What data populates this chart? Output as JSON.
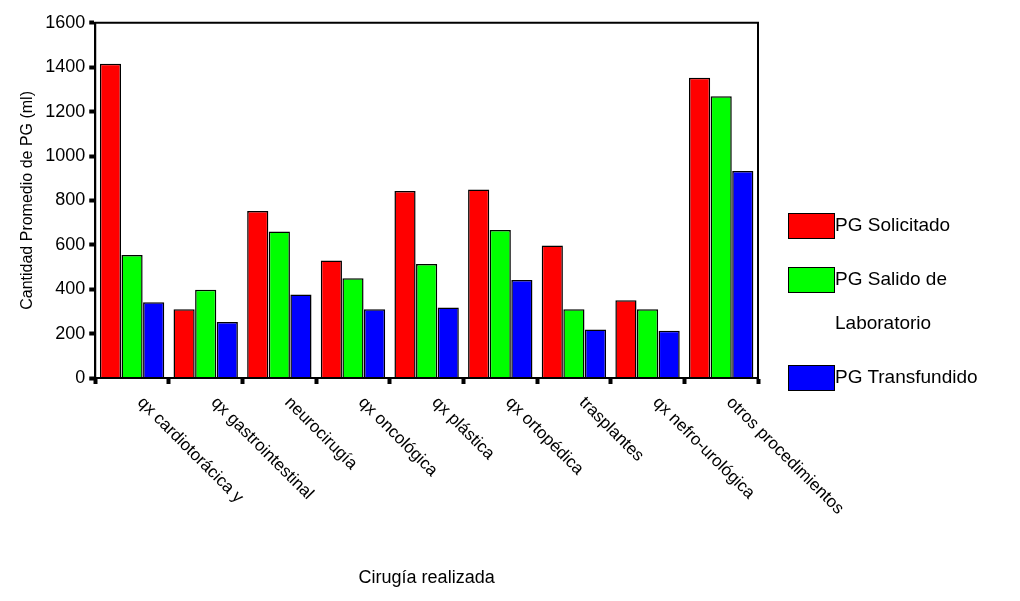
{
  "chart_data": {
    "type": "bar",
    "xlabel": "Cirugía realizada",
    "ylabel": "Cantidad Promedio de PG (ml)",
    "categories": [
      "qx cardiotorácica y",
      "qx gastrointestinal",
      "neurocirugía",
      "qx oncológica",
      "qx plástica",
      "qx ortopédica",
      "trasplantes",
      "qx nefro-urológica",
      "otros procedimientos"
    ],
    "series": [
      {
        "name": "PG Solicitado",
        "color": "#ff0000",
        "values": [
          1415,
          310,
          752,
          529,
          842,
          849,
          597,
          350,
          1352
        ]
      },
      {
        "name": "PG Salido de Laboratorio",
        "color": "#00ff00",
        "values": [
          554,
          398,
          660,
          449,
          514,
          667,
          310,
          310,
          1269
        ]
      },
      {
        "name": "PG Transfundido",
        "color": "#0000ff",
        "values": [
          341,
          252,
          376,
          310,
          318,
          441,
          218,
          213,
          932
        ]
      }
    ],
    "ylim": [
      0,
      1600
    ],
    "yticks": [
      0,
      200,
      400,
      600,
      800,
      1000,
      1200,
      1400,
      1600
    ],
    "grid": false,
    "legend": "right"
  }
}
